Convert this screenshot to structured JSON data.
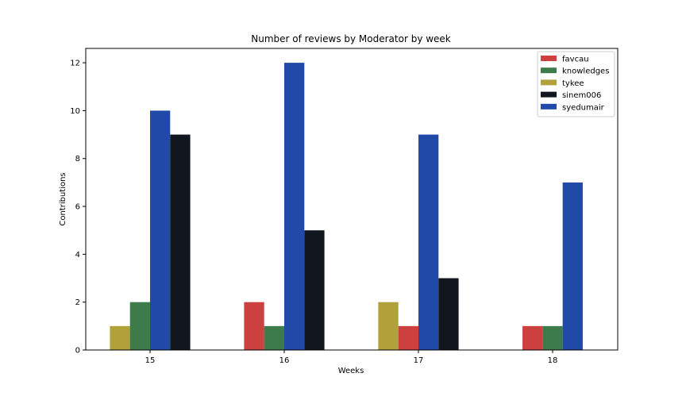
{
  "chart_data": {
    "type": "bar",
    "title": "Number of reviews by Moderator by week",
    "xlabel": "Weeks",
    "ylabel": "Contributions",
    "categories": [
      "15",
      "16",
      "17",
      "18"
    ],
    "ylim": [
      0,
      12.6
    ],
    "yticks": [
      0,
      2,
      4,
      6,
      8,
      10,
      12
    ],
    "grid": false,
    "legend_position": "top-right",
    "series": [
      {
        "name": "favcau",
        "color": "#cc4040",
        "values": [
          null,
          2,
          1,
          1
        ]
      },
      {
        "name": "knowledges",
        "color": "#3e7b4a",
        "values": [
          2,
          1,
          null,
          1
        ]
      },
      {
        "name": "tykee",
        "color": "#b0a13a",
        "values": [
          1,
          null,
          2,
          null
        ]
      },
      {
        "name": "sinem006",
        "color": "#12161e",
        "values": [
          9,
          5,
          3,
          null
        ]
      },
      {
        "name": "syedumair",
        "color": "#2149a8",
        "values": [
          10,
          12,
          9,
          7
        ]
      }
    ],
    "bar_slots": [
      [
        "tykee",
        "knowledges",
        "syedumair",
        "sinem006"
      ],
      [
        "favcau",
        "knowledges",
        "syedumair",
        "sinem006"
      ],
      [
        "tykee",
        "favcau",
        "syedumair",
        "sinem006"
      ],
      [
        "favcau",
        "knowledges",
        "syedumair"
      ]
    ]
  }
}
